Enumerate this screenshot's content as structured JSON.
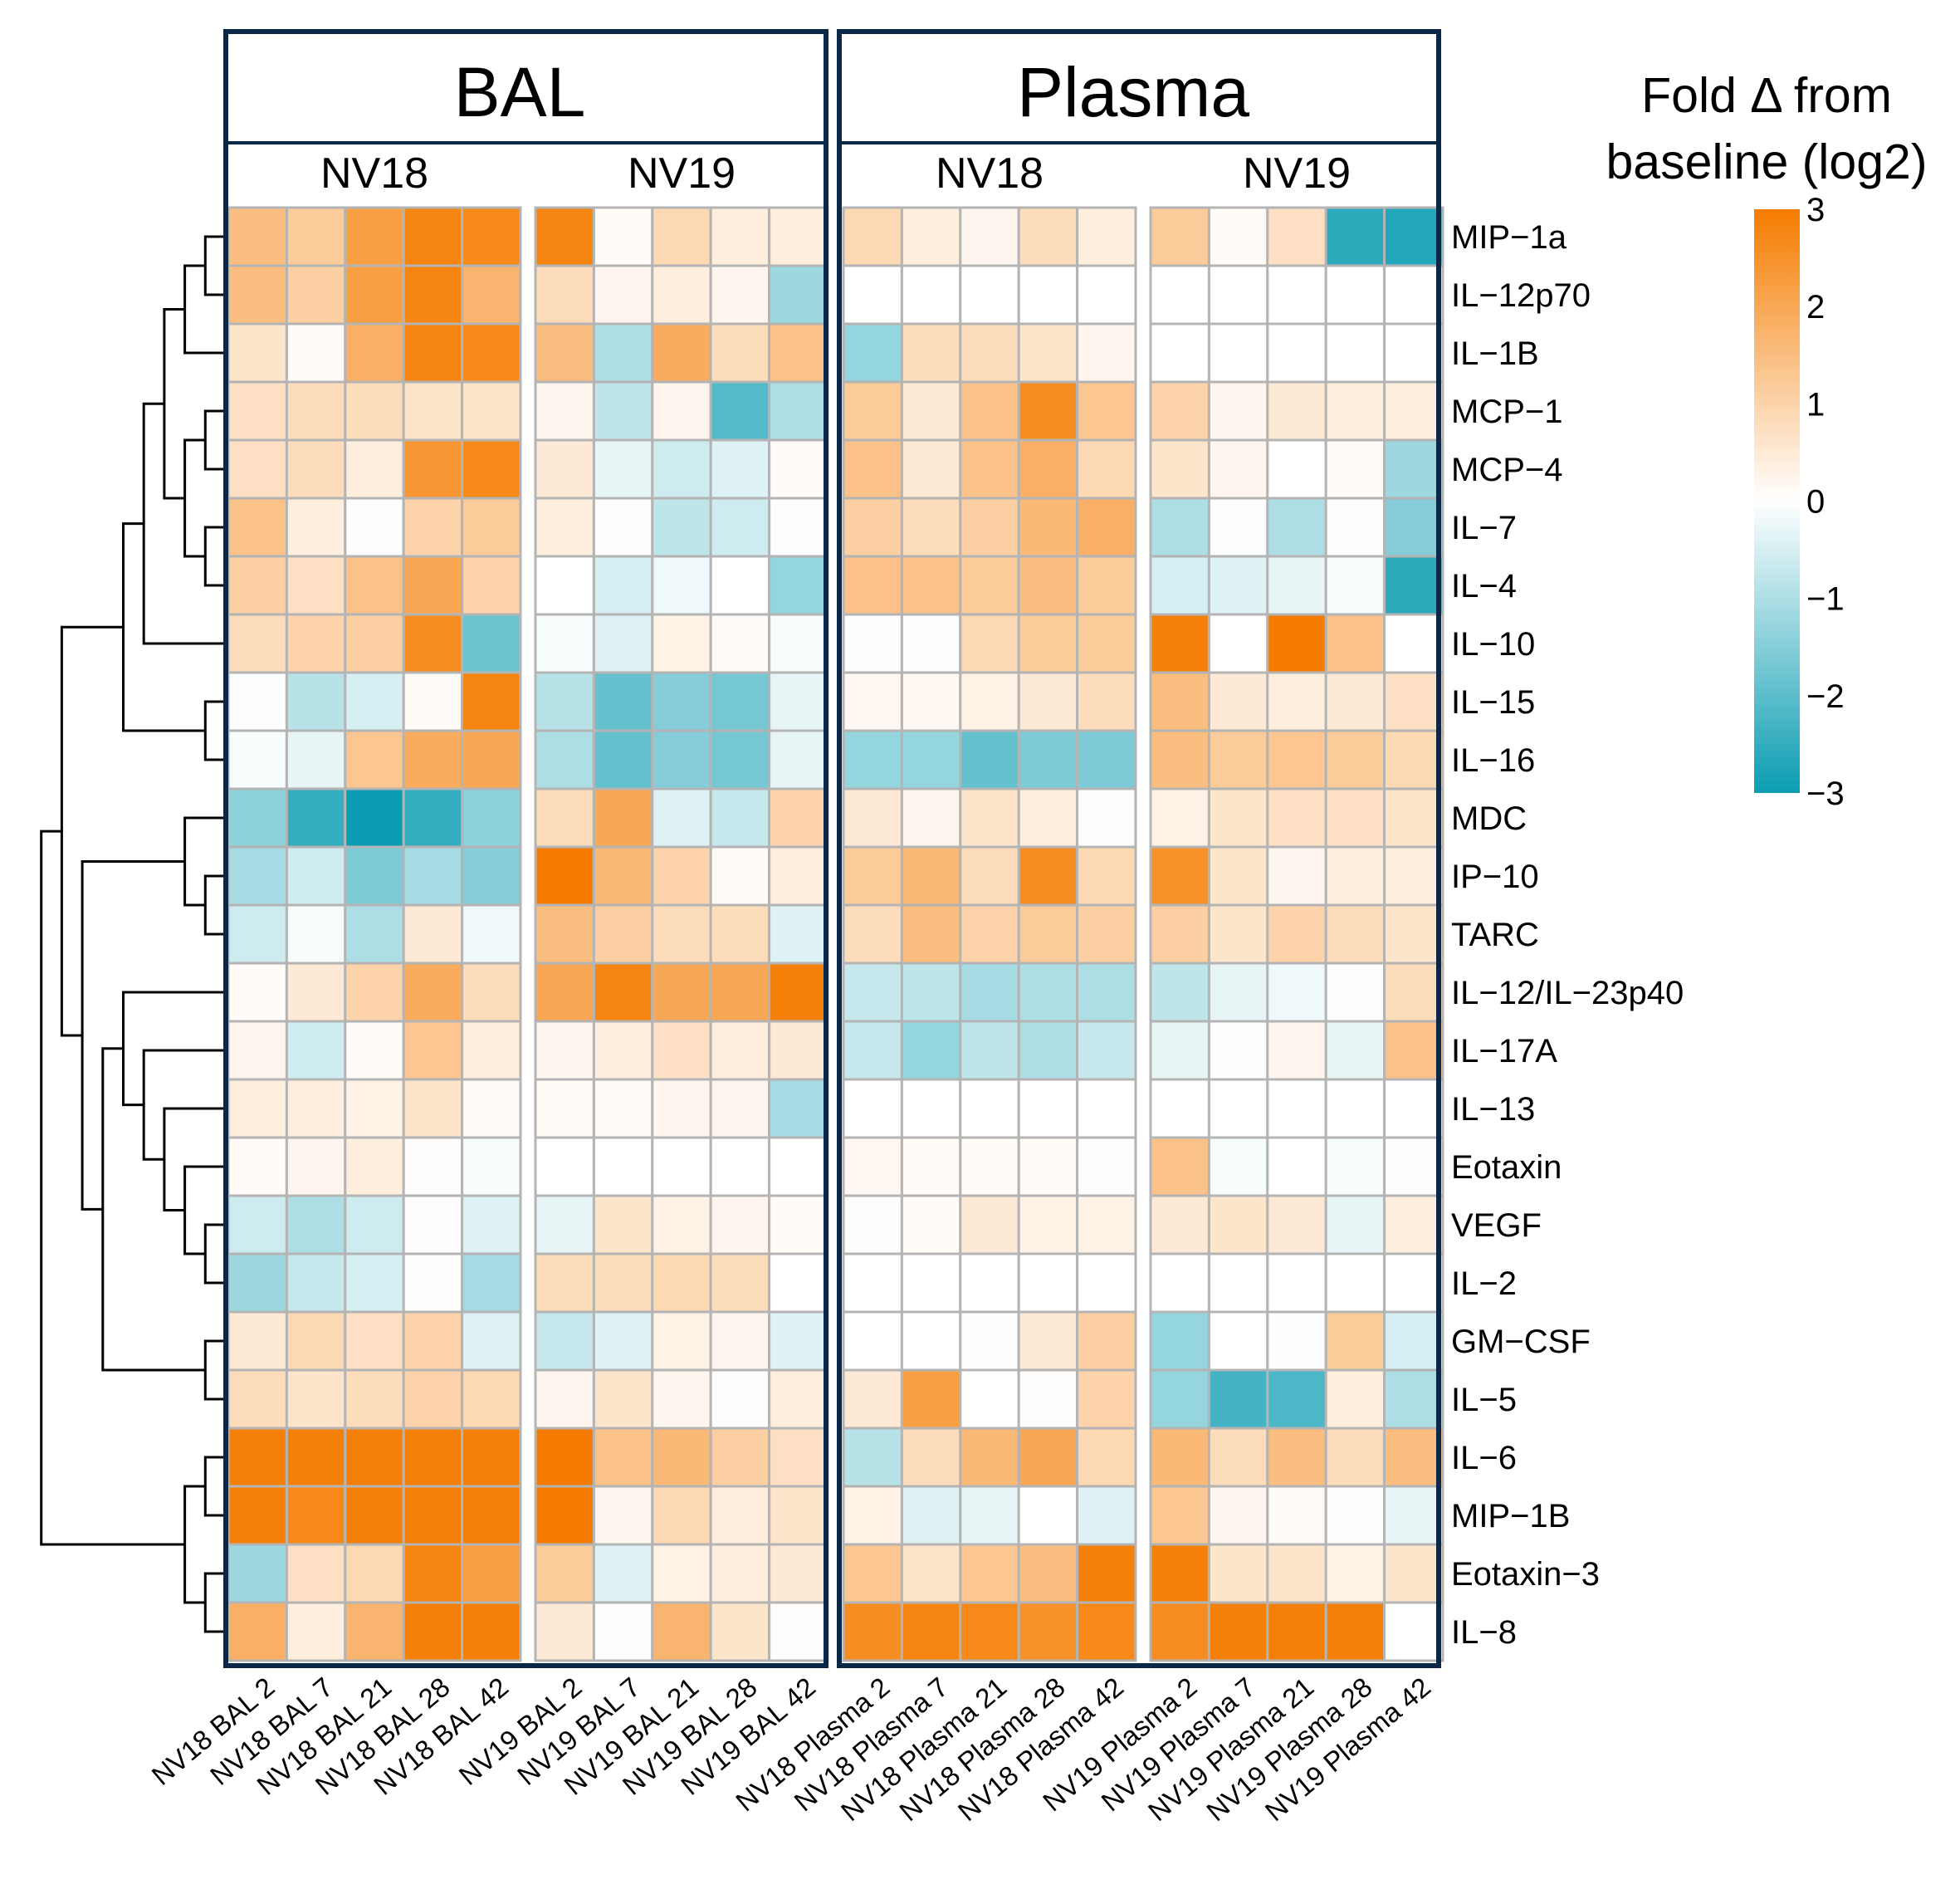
{
  "chart_data": {
    "type": "heatmap",
    "panels": [
      {
        "title": "BAL",
        "groups": [
          "NV18",
          "NV19"
        ]
      },
      {
        "title": "Plasma",
        "groups": [
          "NV18",
          "NV19"
        ]
      }
    ],
    "columns": [
      "NV18 BAL 2",
      "NV18 BAL 7",
      "NV18 BAL 21",
      "NV18 BAL 28",
      "NV18 BAL 42",
      "NV19 BAL 2",
      "NV19 BAL 7",
      "NV19 BAL 21",
      "NV19 BAL 28",
      "NV19 BAL 42",
      "NV18 Plasma 2",
      "NV18 Plasma 7",
      "NV18 Plasma 21",
      "NV18 Plasma 28",
      "NV18 Plasma 42",
      "NV19 Plasma 2",
      "NV19 Plasma 7",
      "NV19 Plasma 21",
      "NV19 Plasma 28",
      "NV19 Plasma 42"
    ],
    "rows": [
      "MIP−1a",
      "IL−12p70",
      "IL−1B",
      "MCP−1",
      "MCP−4",
      "IL−7",
      "IL−4",
      "IL−10",
      "IL−15",
      "IL−16",
      "MDC",
      "IP−10",
      "TARC",
      "IL−12/IL−23p40",
      "IL−17A",
      "IL−13",
      "Eotaxin",
      "VEGF",
      "IL−2",
      "GM−CSF",
      "IL−5",
      "IL−6",
      "MIP−1B",
      "Eotaxin−3",
      "IL−8"
    ],
    "values": [
      [
        1.5,
        1.2,
        2.2,
        2.8,
        2.7,
        2.8,
        0.1,
        0.9,
        0.4,
        0.4,
        0.9,
        0.4,
        0.2,
        0.8,
        0.4,
        1.2,
        0.1,
        0.7,
        -2.6,
        -2.7
      ],
      [
        1.5,
        1.1,
        2.2,
        2.8,
        1.7,
        0.8,
        0.2,
        0.4,
        0.2,
        -1.2,
        0.0,
        0.0,
        0.0,
        0.0,
        0.0,
        0.0,
        0.0,
        0.0,
        0.0,
        0.0
      ],
      [
        0.6,
        0.1,
        1.8,
        2.8,
        2.7,
        1.5,
        -1.0,
        1.9,
        0.8,
        1.4,
        -1.3,
        0.8,
        0.8,
        0.6,
        0.2,
        0.0,
        0.0,
        0.0,
        0.0,
        0.0
      ],
      [
        0.7,
        0.8,
        0.8,
        0.6,
        0.6,
        0.2,
        -0.8,
        0.2,
        -2.1,
        -1.0,
        1.2,
        0.5,
        1.4,
        2.6,
        1.3,
        1.0,
        0.2,
        0.5,
        0.4,
        0.4
      ],
      [
        0.7,
        0.8,
        0.4,
        2.4,
        2.7,
        0.5,
        -0.3,
        -0.6,
        -0.4,
        0.1,
        1.4,
        0.5,
        1.4,
        1.8,
        0.9,
        0.6,
        0.2,
        0.0,
        0.1,
        -1.2
      ],
      [
        1.4,
        0.4,
        -0.05,
        1.0,
        1.2,
        0.4,
        0.05,
        -0.8,
        -0.6,
        -0.05,
        1.1,
        0.8,
        1.1,
        1.6,
        1.8,
        -1.0,
        -0.05,
        -1.0,
        -0.05,
        -1.5
      ],
      [
        1.1,
        0.7,
        1.4,
        2.0,
        1.0,
        0.0,
        -0.5,
        -0.2,
        0.0,
        -1.3,
        1.4,
        1.4,
        1.2,
        1.5,
        1.2,
        -0.5,
        -0.4,
        -0.3,
        -0.1,
        -2.6
      ],
      [
        0.8,
        1.0,
        1.1,
        2.6,
        -1.8,
        -0.1,
        -0.4,
        0.3,
        0.1,
        -0.1,
        -0.05,
        -0.05,
        0.9,
        1.2,
        1.2,
        2.9,
        0.0,
        3.0,
        1.4,
        0.0
      ],
      [
        -0.05,
        -0.9,
        -0.5,
        0.1,
        2.8,
        -0.9,
        -1.9,
        -1.5,
        -1.7,
        -0.3,
        0.15,
        0.15,
        0.3,
        0.5,
        0.8,
        1.5,
        0.5,
        0.4,
        0.5,
        0.7
      ],
      [
        -0.1,
        -0.3,
        1.3,
        1.9,
        2.0,
        -1.0,
        -1.9,
        -1.5,
        -1.7,
        -0.3,
        -1.3,
        -1.3,
        -1.9,
        -1.6,
        -1.6,
        1.5,
        1.2,
        1.3,
        1.2,
        0.9
      ],
      [
        -1.4,
        -2.5,
        -3.0,
        -2.5,
        -1.4,
        0.8,
        2.0,
        -0.4,
        -0.7,
        1.0,
        0.5,
        0.2,
        0.6,
        0.4,
        0.05,
        0.3,
        0.6,
        0.7,
        0.7,
        0.6
      ],
      [
        -1.1,
        -0.6,
        -1.6,
        -1.1,
        -1.5,
        3.0,
        1.6,
        1.0,
        0.1,
        0.4,
        1.2,
        1.6,
        0.8,
        2.6,
        0.9,
        2.5,
        0.6,
        0.2,
        0.4,
        0.4
      ],
      [
        -0.6,
        -0.1,
        -1.0,
        0.5,
        -0.2,
        1.5,
        1.1,
        0.8,
        0.8,
        -0.4,
        0.8,
        1.5,
        1.0,
        1.2,
        1.1,
        1.1,
        0.6,
        1.0,
        0.8,
        0.6
      ],
      [
        0.1,
        0.5,
        1.0,
        1.9,
        0.8,
        2.0,
        2.8,
        2.0,
        2.0,
        2.9,
        -0.7,
        -0.8,
        -1.1,
        -1.0,
        -1.0,
        -0.8,
        -0.3,
        -0.2,
        -0.05,
        0.8
      ],
      [
        0.2,
        -0.6,
        0.1,
        1.3,
        0.4,
        0.2,
        0.4,
        0.7,
        0.4,
        0.5,
        -0.7,
        -1.3,
        -0.8,
        -1.0,
        -0.7,
        -0.3,
        0.05,
        0.2,
        -0.3,
        1.4
      ],
      [
        0.4,
        0.4,
        0.3,
        0.6,
        0.1,
        0.1,
        0.1,
        0.2,
        0.2,
        -1.1,
        0.0,
        0.0,
        0.0,
        0.0,
        0.0,
        0.0,
        0.0,
        0.0,
        0.0,
        0.0
      ],
      [
        0.1,
        0.2,
        0.4,
        0.05,
        -0.1,
        0.0,
        0.0,
        0.0,
        0.0,
        0.0,
        0.15,
        0.1,
        0.1,
        0.1,
        0.05,
        1.4,
        -0.1,
        0.0,
        -0.1,
        -0.05
      ],
      [
        -0.6,
        -1.0,
        -0.6,
        0.05,
        -0.4,
        -0.3,
        0.6,
        0.3,
        0.2,
        0.1,
        0.05,
        0.1,
        0.5,
        0.3,
        0.3,
        0.5,
        0.6,
        0.5,
        -0.3,
        0.4
      ],
      [
        -1.2,
        -0.7,
        -0.5,
        0.05,
        -1.1,
        0.8,
        0.8,
        0.9,
        0.8,
        0.0,
        0.0,
        0.0,
        0.0,
        0.0,
        0.0,
        0.0,
        0.0,
        0.0,
        0.0,
        0.0
      ],
      [
        0.5,
        0.9,
        0.7,
        1.0,
        -0.4,
        -0.7,
        -0.4,
        0.3,
        0.2,
        -0.4,
        0.0,
        0.0,
        0.05,
        0.5,
        1.1,
        -1.3,
        0.0,
        -0.05,
        1.2,
        -0.5
      ],
      [
        0.8,
        0.6,
        0.8,
        1.0,
        0.9,
        0.2,
        0.6,
        0.2,
        0.05,
        0.4,
        0.5,
        2.2,
        0.0,
        0.05,
        1.0,
        -1.3,
        -2.3,
        -2.2,
        0.4,
        -1.0
      ],
      [
        2.9,
        2.9,
        2.9,
        2.9,
        2.9,
        3.0,
        1.4,
        1.6,
        1.1,
        0.7,
        -0.9,
        0.8,
        1.6,
        2.0,
        0.9,
        1.6,
        0.8,
        1.5,
        0.8,
        1.5
      ],
      [
        2.9,
        2.7,
        2.9,
        2.9,
        2.9,
        3.0,
        0.2,
        0.9,
        0.4,
        0.6,
        0.3,
        -0.4,
        -0.3,
        0.0,
        -0.4,
        1.3,
        0.2,
        0.1,
        0.05,
        -0.3
      ],
      [
        -1.2,
        0.7,
        0.9,
        2.8,
        2.2,
        1.2,
        -0.4,
        0.3,
        0.4,
        0.5,
        1.3,
        0.6,
        1.3,
        1.5,
        2.9,
        2.9,
        0.6,
        0.6,
        0.3,
        0.6
      ],
      [
        1.8,
        0.4,
        1.7,
        2.9,
        2.9,
        0.5,
        0.05,
        1.7,
        0.6,
        0.05,
        2.6,
        2.8,
        2.7,
        2.5,
        2.7,
        2.6,
        2.9,
        2.9,
        2.9,
        0.0
      ]
    ],
    "color_scale": {
      "title_line1": "Fold Δ from",
      "title_line2": "baseline (log2)",
      "min": -3,
      "max": 3,
      "ticks": [
        3,
        2,
        1,
        0,
        -1,
        -2,
        -3
      ],
      "low_color": "#0b9db2",
      "mid_color": "#ffffff",
      "high_color": "#f57c00"
    },
    "row_dendrogram": true
  }
}
